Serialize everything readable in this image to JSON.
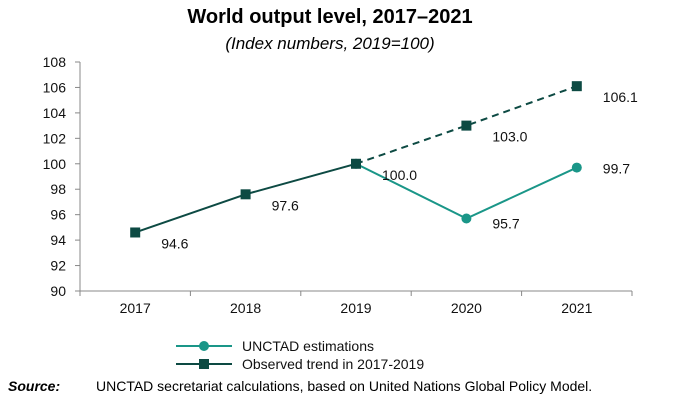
{
  "chart_data": {
    "type": "line",
    "title": "World output level, 2017–2021",
    "subtitle": "(Index numbers, 2019=100)",
    "categories": [
      "2017",
      "2018",
      "2019",
      "2020",
      "2021"
    ],
    "ylim": [
      90,
      108
    ],
    "yticks": [
      90,
      92,
      94,
      96,
      98,
      100,
      102,
      104,
      106,
      108
    ],
    "xlabel": "",
    "ylabel": "",
    "grid": false,
    "series": [
      {
        "name": "UNCTAD estimations",
        "marker": "circle",
        "color": "#1a9688",
        "values": [
          null,
          null,
          100.0,
          95.7,
          99.7
        ],
        "labels": [
          null,
          null,
          null,
          "95.7",
          "99.7"
        ]
      },
      {
        "name": "Observed trend in 2017-2019",
        "marker": "square",
        "color": "#0d4a43",
        "values": [
          94.6,
          97.6,
          100.0,
          103.0,
          106.1
        ],
        "dashed_from_index": 2,
        "labels": [
          "94.6",
          "97.6",
          "100.0",
          "103.0",
          "106.1"
        ]
      }
    ],
    "legend_position": "bottom-center"
  },
  "source": {
    "label": "Source:",
    "text": "UNCTAD secretariat calculations, based on United Nations Global Policy Model."
  }
}
